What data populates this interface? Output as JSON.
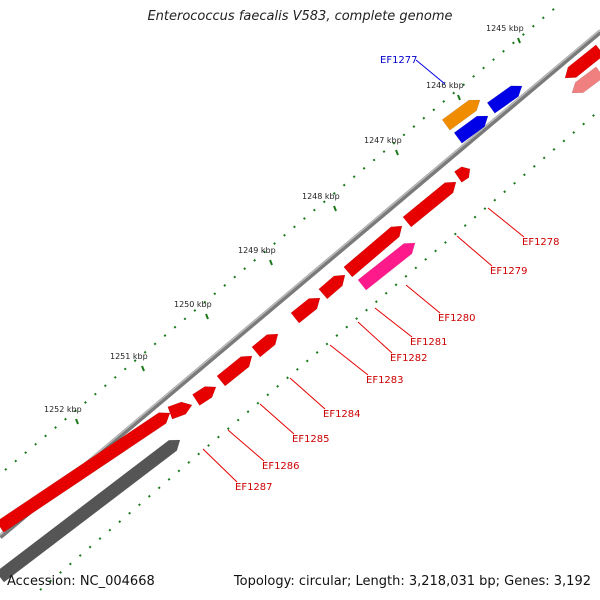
{
  "title": "Enterococcus faecalis V583, complete genome",
  "footer": {
    "accession": "Accession: NC_004668",
    "summary": "Topology: circular; Length: 3,218,031 bp; Genes: 3,192"
  },
  "ticks": [
    "1245 kbp",
    "1246 kbp",
    "1247 kbp",
    "1248 kbp",
    "1249 kbp",
    "1250 kbp",
    "1251 kbp",
    "1252 kbp"
  ],
  "genes": [
    "EF1277",
    "EF1278",
    "EF1279",
    "EF1280",
    "EF1281",
    "EF1282",
    "EF1283",
    "EF1284",
    "EF1285",
    "EF1286",
    "EF1287"
  ],
  "colors": {
    "cds_forward": "#e60000",
    "cds_reverse": "#ff0000",
    "highlight": "#ff1a8c",
    "blue": "#0000e6",
    "orange": "#f08c00",
    "gray": "#555555",
    "pink": "#f08080",
    "tick": "#1a7a1a"
  }
}
